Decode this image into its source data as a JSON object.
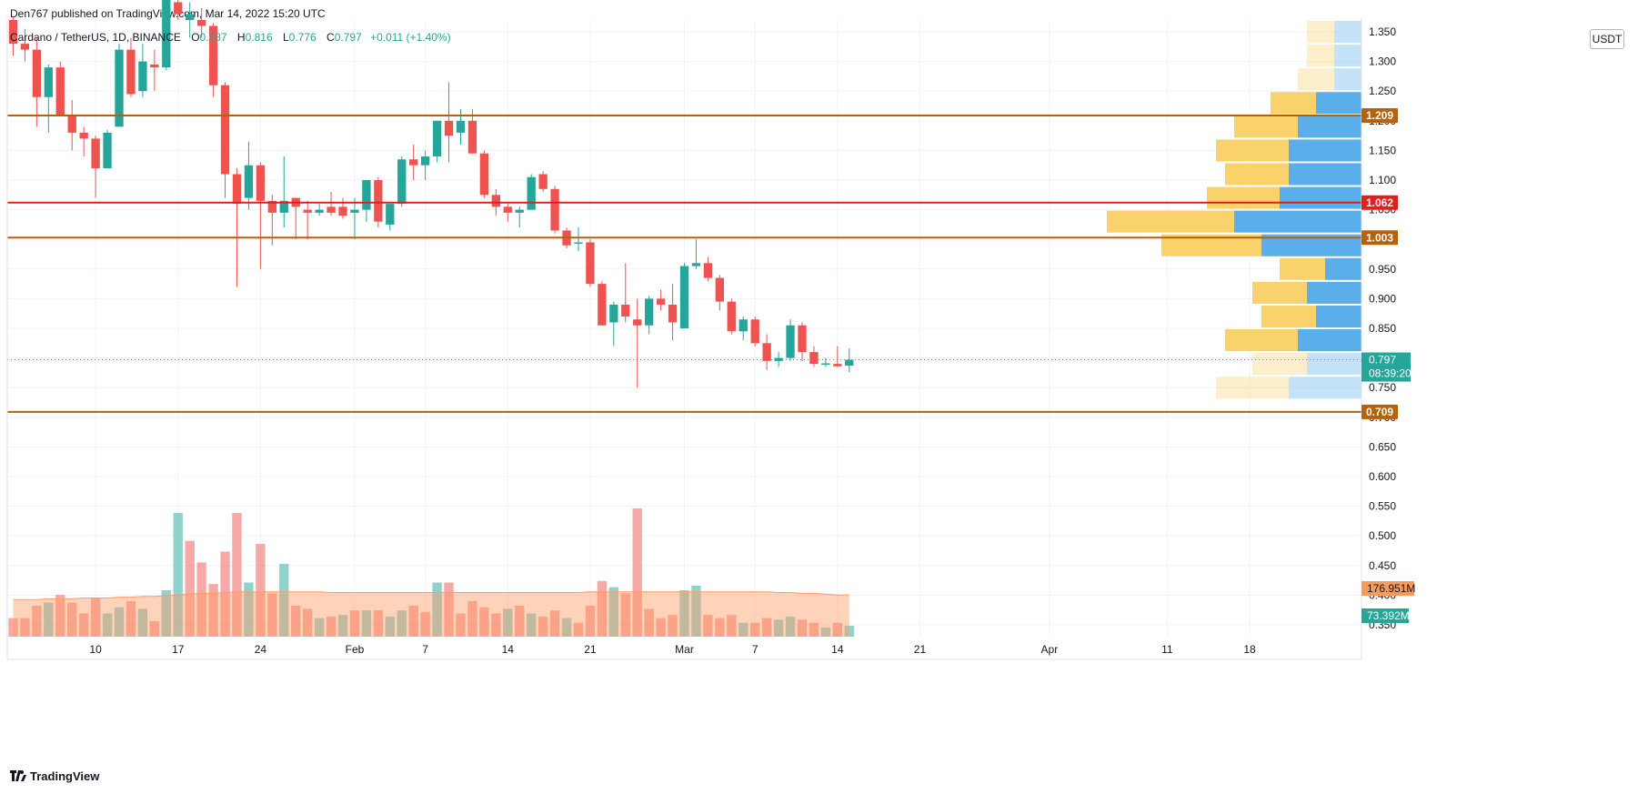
{
  "header": {
    "published": "Den767 published on TradingView.com, Mar 14, 2022 15:20 UTC"
  },
  "legend": {
    "symbol": "Cardano / TetherUS, 1D, BINANCE",
    "o_label": "O",
    "o": "0.787",
    "h_label": "H",
    "h": "0.816",
    "l_label": "L",
    "l": "0.776",
    "c_label": "C",
    "c": "0.797",
    "change": "+0.011 (+1.40%)"
  },
  "price_unit": "USDT",
  "footer": {
    "logo": "TradingView"
  },
  "colors": {
    "up": "#26a69a",
    "down": "#ef5350",
    "level_orange": "#b5620c",
    "level_red": "#e01f1f",
    "vp_up": "#f9d26b",
    "vp_down": "#5aaeea",
    "vol_ma": "#ff9c66",
    "current_price": "#26a69a"
  },
  "chart_data": {
    "type": "candlestick",
    "price_axis": {
      "ticks": [
        "1.350",
        "1.300",
        "1.250",
        "1.200",
        "1.150",
        "1.100",
        "1.050",
        "1.000",
        "0.950",
        "0.900",
        "0.850",
        "0.800",
        "0.750",
        "0.700",
        "0.650",
        "0.600",
        "0.550",
        "0.500",
        "0.450",
        "0.400",
        "0.350"
      ],
      "ylim": [
        0.33,
        1.37
      ]
    },
    "time_axis": {
      "labels": [
        "10",
        "17",
        "24",
        "Feb",
        "7",
        "14",
        "21",
        "Mar",
        "7",
        "14",
        "21",
        "Apr",
        "11",
        "18"
      ],
      "label_days": [
        9,
        16,
        23,
        31,
        37,
        44,
        51,
        59,
        65,
        72,
        79,
        90,
        100,
        107
      ],
      "start": "2022-01-01",
      "xlim": [
        1.5,
        116.5
      ]
    },
    "candles": [
      {
        "d": 2,
        "o": 1.37,
        "h": 1.375,
        "l": 1.31,
        "c": 1.33
      },
      {
        "d": 3,
        "o": 1.33,
        "h": 1.355,
        "l": 1.3,
        "c": 1.32
      },
      {
        "d": 4,
        "o": 1.32,
        "h": 1.34,
        "l": 1.19,
        "c": 1.24
      },
      {
        "d": 5,
        "o": 1.24,
        "h": 1.295,
        "l": 1.18,
        "c": 1.29
      },
      {
        "d": 6,
        "o": 1.29,
        "h": 1.3,
        "l": 1.21,
        "c": 1.21
      },
      {
        "d": 7,
        "o": 1.21,
        "h": 1.235,
        "l": 1.15,
        "c": 1.18
      },
      {
        "d": 8,
        "o": 1.18,
        "h": 1.19,
        "l": 1.14,
        "c": 1.17
      },
      {
        "d": 9,
        "o": 1.17,
        "h": 1.175,
        "l": 1.07,
        "c": 1.12
      },
      {
        "d": 10,
        "o": 1.12,
        "h": 1.185,
        "l": 1.12,
        "c": 1.18
      },
      {
        "d": 11,
        "o": 1.19,
        "h": 1.33,
        "l": 1.19,
        "c": 1.32
      },
      {
        "d": 12,
        "o": 1.32,
        "h": 1.34,
        "l": 1.24,
        "c": 1.245
      },
      {
        "d": 13,
        "o": 1.25,
        "h": 1.33,
        "l": 1.24,
        "c": 1.3
      },
      {
        "d": 14,
        "o": 1.295,
        "h": 1.32,
        "l": 1.25,
        "c": 1.29
      },
      {
        "d": 15,
        "o": 1.29,
        "h": 1.43,
        "l": 1.285,
        "c": 1.42
      },
      {
        "d": 16,
        "o": 1.4,
        "h": 1.43,
        "l": 1.37,
        "c": 1.38
      },
      {
        "d": 17,
        "o": 1.37,
        "h": 1.4,
        "l": 1.34,
        "c": 1.38
      },
      {
        "d": 18,
        "o": 1.37,
        "h": 1.39,
        "l": 1.34,
        "c": 1.36
      },
      {
        "d": 19,
        "o": 1.36,
        "h": 1.365,
        "l": 1.24,
        "c": 1.26
      },
      {
        "d": 20,
        "o": 1.26,
        "h": 1.265,
        "l": 1.07,
        "c": 1.11
      },
      {
        "d": 21,
        "o": 1.11,
        "h": 1.12,
        "l": 0.92,
        "c": 1.06
      },
      {
        "d": 22,
        "o": 1.07,
        "h": 1.165,
        "l": 1.05,
        "c": 1.125
      },
      {
        "d": 23,
        "o": 1.125,
        "h": 1.13,
        "l": 0.95,
        "c": 1.065
      },
      {
        "d": 24,
        "o": 1.065,
        "h": 1.075,
        "l": 0.99,
        "c": 1.045
      },
      {
        "d": 25,
        "o": 1.045,
        "h": 1.14,
        "l": 1.02,
        "c": 1.065
      },
      {
        "d": 26,
        "o": 1.07,
        "h": 1.07,
        "l": 1.0,
        "c": 1.055
      },
      {
        "d": 27,
        "o": 1.05,
        "h": 1.065,
        "l": 1.0,
        "c": 1.045
      },
      {
        "d": 28,
        "o": 1.045,
        "h": 1.06,
        "l": 1.04,
        "c": 1.05
      },
      {
        "d": 29,
        "o": 1.055,
        "h": 1.08,
        "l": 1.04,
        "c": 1.045
      },
      {
        "d": 30,
        "o": 1.055,
        "h": 1.07,
        "l": 1.035,
        "c": 1.04
      },
      {
        "d": 31,
        "o": 1.045,
        "h": 1.07,
        "l": 1.0,
        "c": 1.05
      },
      {
        "d": 32,
        "o": 1.05,
        "h": 1.1,
        "l": 1.03,
        "c": 1.1
      },
      {
        "d": 33,
        "o": 1.1,
        "h": 1.105,
        "l": 1.02,
        "c": 1.03
      },
      {
        "d": 34,
        "o": 1.025,
        "h": 1.06,
        "l": 1.015,
        "c": 1.06
      },
      {
        "d": 35,
        "o": 1.06,
        "h": 1.14,
        "l": 1.055,
        "c": 1.135
      },
      {
        "d": 36,
        "o": 1.135,
        "h": 1.16,
        "l": 1.1,
        "c": 1.125
      },
      {
        "d": 37,
        "o": 1.125,
        "h": 1.15,
        "l": 1.1,
        "c": 1.14
      },
      {
        "d": 38,
        "o": 1.14,
        "h": 1.2,
        "l": 1.13,
        "c": 1.2
      },
      {
        "d": 39,
        "o": 1.2,
        "h": 1.265,
        "l": 1.13,
        "c": 1.175
      },
      {
        "d": 40,
        "o": 1.18,
        "h": 1.22,
        "l": 1.16,
        "c": 1.2
      },
      {
        "d": 41,
        "o": 1.2,
        "h": 1.22,
        "l": 1.145,
        "c": 1.145
      },
      {
        "d": 42,
        "o": 1.145,
        "h": 1.15,
        "l": 1.07,
        "c": 1.075
      },
      {
        "d": 43,
        "o": 1.075,
        "h": 1.085,
        "l": 1.04,
        "c": 1.055
      },
      {
        "d": 44,
        "o": 1.055,
        "h": 1.06,
        "l": 1.03,
        "c": 1.045
      },
      {
        "d": 45,
        "o": 1.045,
        "h": 1.055,
        "l": 1.02,
        "c": 1.05
      },
      {
        "d": 46,
        "o": 1.05,
        "h": 1.11,
        "l": 1.05,
        "c": 1.105
      },
      {
        "d": 47,
        "o": 1.11,
        "h": 1.115,
        "l": 1.08,
        "c": 1.085
      },
      {
        "d": 48,
        "o": 1.085,
        "h": 1.09,
        "l": 1.01,
        "c": 1.015
      },
      {
        "d": 49,
        "o": 1.015,
        "h": 1.02,
        "l": 0.985,
        "c": 0.99
      },
      {
        "d": 50,
        "o": 0.995,
        "h": 1.02,
        "l": 0.98,
        "c": 0.995
      },
      {
        "d": 51,
        "o": 0.995,
        "h": 1.0,
        "l": 0.92,
        "c": 0.925
      },
      {
        "d": 52,
        "o": 0.925,
        "h": 0.93,
        "l": 0.855,
        "c": 0.855
      },
      {
        "d": 53,
        "o": 0.86,
        "h": 0.895,
        "l": 0.82,
        "c": 0.89
      },
      {
        "d": 54,
        "o": 0.89,
        "h": 0.96,
        "l": 0.86,
        "c": 0.87
      },
      {
        "d": 55,
        "o": 0.865,
        "h": 0.9,
        "l": 0.75,
        "c": 0.855
      },
      {
        "d": 56,
        "o": 0.855,
        "h": 0.905,
        "l": 0.84,
        "c": 0.9
      },
      {
        "d": 57,
        "o": 0.9,
        "h": 0.915,
        "l": 0.88,
        "c": 0.89
      },
      {
        "d": 58,
        "o": 0.89,
        "h": 0.925,
        "l": 0.83,
        "c": 0.86
      },
      {
        "d": 59,
        "o": 0.85,
        "h": 0.96,
        "l": 0.85,
        "c": 0.955
      },
      {
        "d": 60,
        "o": 0.955,
        "h": 1.0,
        "l": 0.95,
        "c": 0.96
      },
      {
        "d": 61,
        "o": 0.96,
        "h": 0.97,
        "l": 0.93,
        "c": 0.935
      },
      {
        "d": 62,
        "o": 0.935,
        "h": 0.94,
        "l": 0.88,
        "c": 0.895
      },
      {
        "d": 63,
        "o": 0.895,
        "h": 0.9,
        "l": 0.84,
        "c": 0.845
      },
      {
        "d": 64,
        "o": 0.845,
        "h": 0.87,
        "l": 0.83,
        "c": 0.865
      },
      {
        "d": 65,
        "o": 0.865,
        "h": 0.87,
        "l": 0.82,
        "c": 0.825
      },
      {
        "d": 66,
        "o": 0.825,
        "h": 0.84,
        "l": 0.78,
        "c": 0.795
      },
      {
        "d": 67,
        "o": 0.795,
        "h": 0.81,
        "l": 0.785,
        "c": 0.8
      },
      {
        "d": 68,
        "o": 0.8,
        "h": 0.865,
        "l": 0.795,
        "c": 0.855
      },
      {
        "d": 69,
        "o": 0.855,
        "h": 0.86,
        "l": 0.795,
        "c": 0.81
      },
      {
        "d": 70,
        "o": 0.81,
        "h": 0.82,
        "l": 0.785,
        "c": 0.79
      },
      {
        "d": 71,
        "o": 0.79,
        "h": 0.8,
        "l": 0.785,
        "c": 0.791
      },
      {
        "d": 72,
        "o": 0.79,
        "h": 0.82,
        "l": 0.785,
        "c": 0.786
      },
      {
        "d": 73,
        "o": 0.787,
        "h": 0.816,
        "l": 0.776,
        "c": 0.797
      }
    ],
    "volume": {
      "max": 100,
      "values": [
        {
          "d": 2,
          "v": 12,
          "up": false
        },
        {
          "d": 3,
          "v": 12,
          "up": false
        },
        {
          "d": 4,
          "v": 20,
          "up": false
        },
        {
          "d": 5,
          "v": 22,
          "up": true
        },
        {
          "d": 6,
          "v": 27,
          "up": false
        },
        {
          "d": 7,
          "v": 22,
          "up": false
        },
        {
          "d": 8,
          "v": 15,
          "up": false
        },
        {
          "d": 9,
          "v": 25,
          "up": false
        },
        {
          "d": 10,
          "v": 15,
          "up": true
        },
        {
          "d": 11,
          "v": 19,
          "up": true
        },
        {
          "d": 12,
          "v": 23,
          "up": false
        },
        {
          "d": 13,
          "v": 18,
          "up": true
        },
        {
          "d": 14,
          "v": 10,
          "up": false
        },
        {
          "d": 15,
          "v": 30,
          "up": true
        },
        {
          "d": 16,
          "v": 80,
          "up": true
        },
        {
          "d": 17,
          "v": 62,
          "up": false
        },
        {
          "d": 18,
          "v": 48,
          "up": false
        },
        {
          "d": 19,
          "v": 34,
          "up": false
        },
        {
          "d": 20,
          "v": 55,
          "up": false
        },
        {
          "d": 21,
          "v": 80,
          "up": false
        },
        {
          "d": 22,
          "v": 35,
          "up": true
        },
        {
          "d": 23,
          "v": 60,
          "up": false
        },
        {
          "d": 24,
          "v": 28,
          "up": false
        },
        {
          "d": 25,
          "v": 47,
          "up": true
        },
        {
          "d": 26,
          "v": 20,
          "up": false
        },
        {
          "d": 27,
          "v": 18,
          "up": false
        },
        {
          "d": 28,
          "v": 12,
          "up": true
        },
        {
          "d": 29,
          "v": 13,
          "up": false
        },
        {
          "d": 30,
          "v": 14,
          "up": true
        },
        {
          "d": 31,
          "v": 17,
          "up": false
        },
        {
          "d": 32,
          "v": 17,
          "up": true
        },
        {
          "d": 33,
          "v": 17,
          "up": false
        },
        {
          "d": 34,
          "v": 13,
          "up": true
        },
        {
          "d": 35,
          "v": 17,
          "up": true
        },
        {
          "d": 36,
          "v": 20,
          "up": false
        },
        {
          "d": 37,
          "v": 16,
          "up": false
        },
        {
          "d": 38,
          "v": 35,
          "up": true
        },
        {
          "d": 39,
          "v": 35,
          "up": false
        },
        {
          "d": 40,
          "v": 15,
          "up": false
        },
        {
          "d": 41,
          "v": 23,
          "up": false
        },
        {
          "d": 42,
          "v": 19,
          "up": false
        },
        {
          "d": 43,
          "v": 15,
          "up": false
        },
        {
          "d": 44,
          "v": 18,
          "up": true
        },
        {
          "d": 45,
          "v": 20,
          "up": false
        },
        {
          "d": 46,
          "v": 15,
          "up": true
        },
        {
          "d": 47,
          "v": 13,
          "up": false
        },
        {
          "d": 48,
          "v": 17,
          "up": false
        },
        {
          "d": 49,
          "v": 12,
          "up": true
        },
        {
          "d": 50,
          "v": 9,
          "up": false
        },
        {
          "d": 51,
          "v": 20,
          "up": false
        },
        {
          "d": 52,
          "v": 36,
          "up": false
        },
        {
          "d": 53,
          "v": 32,
          "up": true
        },
        {
          "d": 54,
          "v": 28,
          "up": false
        },
        {
          "d": 55,
          "v": 83,
          "up": false
        },
        {
          "d": 56,
          "v": 18,
          "up": false
        },
        {
          "d": 57,
          "v": 12,
          "up": false
        },
        {
          "d": 58,
          "v": 14,
          "up": false
        },
        {
          "d": 59,
          "v": 30,
          "up": true
        },
        {
          "d": 60,
          "v": 33,
          "up": true
        },
        {
          "d": 61,
          "v": 14,
          "up": false
        },
        {
          "d": 62,
          "v": 12,
          "up": false
        },
        {
          "d": 63,
          "v": 14,
          "up": false
        },
        {
          "d": 64,
          "v": 9,
          "up": true
        },
        {
          "d": 65,
          "v": 9,
          "up": false
        },
        {
          "d": 66,
          "v": 12,
          "up": false
        },
        {
          "d": 67,
          "v": 11,
          "up": true
        },
        {
          "d": 68,
          "v": 13,
          "up": true
        },
        {
          "d": 69,
          "v": 11,
          "up": false
        },
        {
          "d": 70,
          "v": 9,
          "up": false
        },
        {
          "d": 71,
          "v": 6,
          "up": true
        },
        {
          "d": 72,
          "v": 9,
          "up": false
        },
        {
          "d": 73,
          "v": 7,
          "up": true
        }
      ],
      "ma": [
        24,
        24,
        24,
        24.5,
        24.5,
        24.5,
        25,
        25,
        25,
        25.5,
        25.5,
        26,
        26,
        26.5,
        27,
        27.5,
        28,
        28,
        28.5,
        29,
        29,
        29,
        29,
        29,
        29,
        29,
        29,
        28.5,
        28.5,
        28.5,
        28.5,
        28.5,
        28.5,
        28.5,
        28.5,
        28.5,
        28.5,
        28.5,
        28.5,
        28.5,
        28.5,
        28.5,
        28.5,
        28.5,
        28.5,
        28.5,
        28.5,
        28.5,
        28.5,
        29,
        29,
        29,
        29,
        29,
        29,
        29,
        29,
        29,
        29,
        29,
        29,
        29,
        29,
        29,
        29,
        28.5,
        28.5,
        28,
        28,
        27.5,
        27,
        27
      ],
      "vol_label": "176.951M",
      "vol_last_label": "73.392M"
    },
    "volume_profile": [
      {
        "lo": 1.33,
        "hi": 1.37,
        "up": 3,
        "down": 3,
        "faded": true
      },
      {
        "lo": 1.29,
        "hi": 1.33,
        "up": 3,
        "down": 3,
        "faded": true
      },
      {
        "lo": 1.25,
        "hi": 1.29,
        "up": 4,
        "down": 3,
        "faded": true
      },
      {
        "lo": 1.21,
        "hi": 1.25,
        "up": 5,
        "down": 5
      },
      {
        "lo": 1.17,
        "hi": 1.21,
        "up": 7,
        "down": 7
      },
      {
        "lo": 1.13,
        "hi": 1.17,
        "up": 8,
        "down": 8
      },
      {
        "lo": 1.09,
        "hi": 1.13,
        "up": 7,
        "down": 8
      },
      {
        "lo": 1.05,
        "hi": 1.09,
        "up": 8,
        "down": 9
      },
      {
        "lo": 1.01,
        "hi": 1.05,
        "up": 14,
        "down": 14
      },
      {
        "lo": 0.97,
        "hi": 1.01,
        "up": 11,
        "down": 11
      },
      {
        "lo": 0.93,
        "hi": 0.97,
        "up": 5,
        "down": 4
      },
      {
        "lo": 0.89,
        "hi": 0.93,
        "up": 6,
        "down": 6
      },
      {
        "lo": 0.85,
        "hi": 0.89,
        "up": 6,
        "down": 5
      },
      {
        "lo": 0.81,
        "hi": 0.85,
        "up": 8,
        "down": 7
      },
      {
        "lo": 0.77,
        "hi": 0.81,
        "up": 6,
        "down": 6,
        "faded": true
      },
      {
        "lo": 0.73,
        "hi": 0.77,
        "up": 8,
        "down": 8,
        "faded": true
      }
    ],
    "levels": [
      {
        "price": 1.209,
        "label": "1.209",
        "color": "#b5620c"
      },
      {
        "price": 1.062,
        "label": "1.062",
        "color": "#e01f1f"
      },
      {
        "price": 1.003,
        "label": "1.003",
        "color": "#b5620c"
      },
      {
        "price": 0.709,
        "label": "0.709",
        "color": "#b5620c"
      }
    ],
    "current": {
      "price": 0.797,
      "label": "0.797",
      "countdown": "08:39:20"
    }
  }
}
